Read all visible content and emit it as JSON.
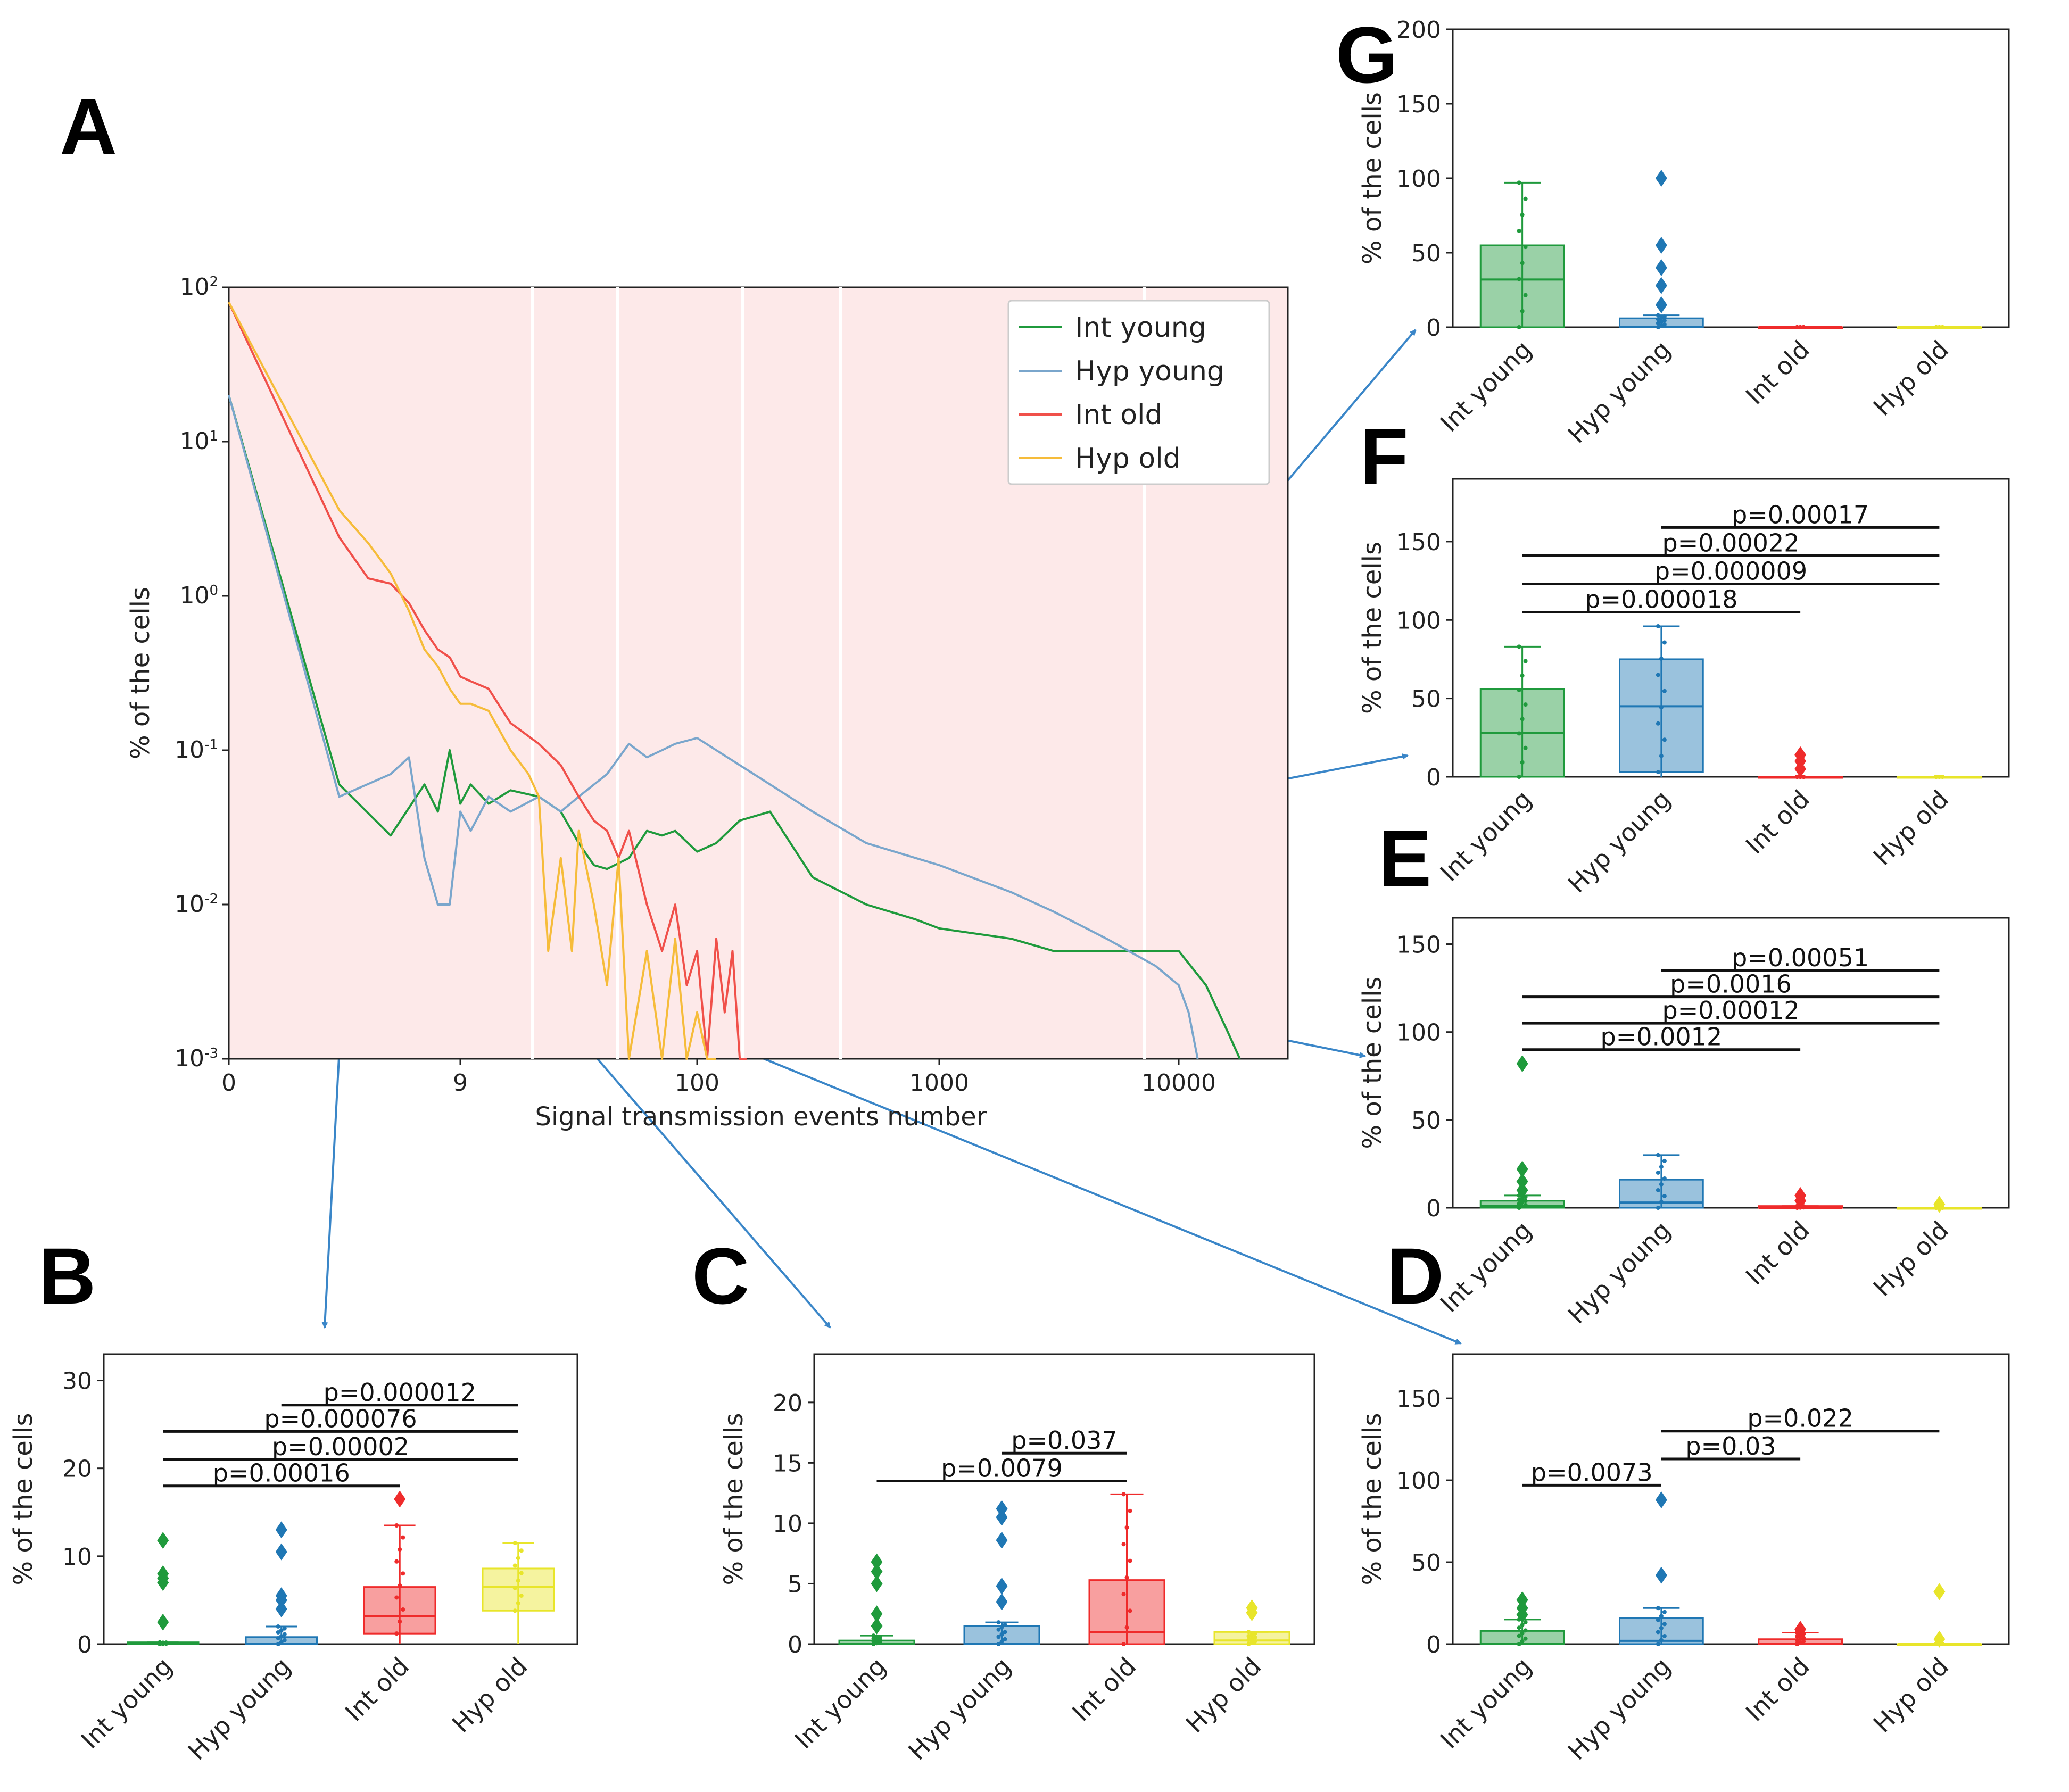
{
  "colors": {
    "int_young": "#1f9a3c",
    "hyp_young": "#1f77b4",
    "int_old": "#ef2b2b",
    "hyp_old": "#e8e52a",
    "line_hyp_young": "#7aa6cc",
    "line_int_old": "#f0504a",
    "line_hyp_old": "#f6bc3a",
    "bg_main": "#fde9e9",
    "arrow": "#3a86c8"
  },
  "chart_data": [
    {
      "id": "A",
      "panel_letter": "A",
      "type": "line",
      "xlabel": "Signal transmission events number",
      "ylabel": "% of the cells",
      "yscale": "log",
      "ylim": [
        0.001,
        100
      ],
      "y_ticks": [
        {
          "value": 100,
          "base": "10",
          "exp": "2"
        },
        {
          "value": 10,
          "base": "10",
          "exp": "1"
        },
        {
          "value": 1,
          "base": "10",
          "exp": "0"
        },
        {
          "value": 0.1,
          "base": "10",
          "exp": "-1"
        },
        {
          "value": 0.01,
          "base": "10",
          "exp": "-2"
        },
        {
          "value": 0.001,
          "base": "10",
          "exp": "-3"
        }
      ],
      "x_ticks": [
        "0",
        "9",
        "100",
        "1000",
        "10000"
      ],
      "x_tick_values": [
        0,
        9,
        100,
        1000,
        10000
      ],
      "legend": [
        "Int young",
        "Hyp young",
        "Int old",
        "Hyp old"
      ],
      "series": [
        {
          "name": "Int young",
          "color_key": "int_young",
          "x": [
            0,
            2,
            4,
            6,
            7,
            8,
            9,
            10,
            12,
            15,
            20,
            25,
            30,
            35,
            40,
            50,
            60,
            70,
            80,
            100,
            120,
            150,
            200,
            300,
            500,
            800,
            1000,
            2000,
            3000,
            5000,
            8000,
            10000,
            13000,
            16000,
            18000
          ],
          "y": [
            20,
            0.06,
            0.028,
            0.06,
            0.04,
            0.1,
            0.045,
            0.06,
            0.045,
            0.055,
            0.05,
            0.04,
            0.025,
            0.018,
            0.017,
            0.02,
            0.03,
            0.028,
            0.03,
            0.022,
            0.025,
            0.035,
            0.04,
            0.015,
            0.01,
            0.008,
            0.007,
            0.006,
            0.005,
            0.005,
            0.005,
            0.005,
            0.003,
            0.0015,
            0.001
          ]
        },
        {
          "name": "Hyp young",
          "color_key": "line_hyp_young",
          "x": [
            0,
            2,
            4,
            5,
            6,
            7,
            8,
            9,
            10,
            12,
            15,
            20,
            25,
            30,
            40,
            50,
            60,
            70,
            80,
            100,
            120,
            150,
            200,
            300,
            500,
            800,
            1000,
            2000,
            3000,
            5000,
            8000,
            10000,
            11000,
            12000
          ],
          "y": [
            20,
            0.05,
            0.07,
            0.09,
            0.02,
            0.01,
            0.01,
            0.04,
            0.03,
            0.05,
            0.04,
            0.05,
            0.04,
            0.05,
            0.07,
            0.11,
            0.09,
            0.1,
            0.11,
            0.12,
            0.1,
            0.08,
            0.06,
            0.04,
            0.025,
            0.02,
            0.018,
            0.012,
            0.009,
            0.006,
            0.004,
            0.003,
            0.002,
            0.001
          ]
        },
        {
          "name": "Int old",
          "color_key": "line_int_old",
          "x": [
            0,
            2,
            3,
            4,
            5,
            6,
            7,
            8,
            9,
            10,
            12,
            15,
            20,
            25,
            30,
            35,
            40,
            45,
            50,
            60,
            70,
            80,
            90,
            100,
            110,
            120,
            130,
            140,
            150,
            160
          ],
          "y": [
            80,
            2.4,
            1.3,
            1.2,
            0.9,
            0.6,
            0.45,
            0.4,
            0.3,
            0.28,
            0.25,
            0.15,
            0.11,
            0.08,
            0.05,
            0.035,
            0.03,
            0.02,
            0.03,
            0.01,
            0.005,
            0.01,
            0.003,
            0.005,
            0.001,
            0.006,
            0.002,
            0.005,
            0.001,
            0.001
          ]
        },
        {
          "name": "Hyp old",
          "color_key": "line_hyp_old",
          "x": [
            0,
            2,
            3,
            4,
            5,
            6,
            7,
            8,
            9,
            10,
            12,
            15,
            18,
            20,
            22,
            25,
            28,
            30,
            35,
            40,
            45,
            50,
            60,
            70,
            80,
            90,
            100,
            110,
            120
          ],
          "y": [
            80,
            3.6,
            2.2,
            1.4,
            0.8,
            0.45,
            0.35,
            0.25,
            0.2,
            0.2,
            0.18,
            0.1,
            0.07,
            0.05,
            0.005,
            0.02,
            0.005,
            0.03,
            0.01,
            0.003,
            0.02,
            0.001,
            0.005,
            0.001,
            0.006,
            0.001,
            0.002,
            0.001,
            0.001
          ]
        }
      ]
    },
    {
      "id": "B",
      "panel_letter": "B",
      "type": "box",
      "ylabel": "% of the cells",
      "ylim": [
        0,
        33
      ],
      "y_ticks": [
        0,
        10,
        20,
        30
      ],
      "categories": [
        "Int young",
        "Hyp young",
        "Int old",
        "Hyp old"
      ],
      "boxes": [
        {
          "q1": 0,
          "median": 0,
          "q3": 0.2,
          "whislo": 0,
          "whishi": 0.2,
          "fliers": [
            2.5,
            7.0,
            7.5,
            8.0,
            11.8
          ]
        },
        {
          "q1": 0,
          "median": 0,
          "q3": 0.8,
          "whislo": 0,
          "whishi": 2.0,
          "fliers": [
            4.0,
            5.0,
            5.5,
            10.5,
            13.0
          ]
        },
        {
          "q1": 1.2,
          "median": 3.2,
          "q3": 6.5,
          "whislo": 0,
          "whishi": 13.5,
          "fliers": [
            16.5
          ]
        },
        {
          "q1": 3.8,
          "median": 6.5,
          "q3": 8.6,
          "whislo": 0,
          "whishi": 11.5,
          "fliers": []
        }
      ],
      "comparisons": [
        {
          "label": "p=0.00016",
          "from": 0,
          "to": 2,
          "y": 18.0
        },
        {
          "label": "p=0.00002",
          "from": 0,
          "to": 3,
          "y": 21.0
        },
        {
          "label": "p=0.000076",
          "from": 0,
          "to": 3,
          "y": 24.2
        },
        {
          "label": "p=0.000012",
          "from": 1,
          "to": 3,
          "y": 27.2
        }
      ]
    },
    {
      "id": "C",
      "panel_letter": "C",
      "type": "box",
      "ylabel": "% of the cells",
      "ylim": [
        0,
        24
      ],
      "y_ticks": [
        0,
        5,
        10,
        15,
        20
      ],
      "categories": [
        "Int young",
        "Hyp young",
        "Int old",
        "Hyp old"
      ],
      "boxes": [
        {
          "q1": 0,
          "median": 0,
          "q3": 0.3,
          "whislo": 0,
          "whishi": 0.7,
          "fliers": [
            1.5,
            2.5,
            5.0,
            6.0,
            6.8
          ]
        },
        {
          "q1": 0,
          "median": 0,
          "q3": 1.5,
          "whislo": 0,
          "whishi": 1.8,
          "fliers": [
            3.5,
            4.8,
            8.6,
            10.5,
            11.2
          ]
        },
        {
          "q1": 0,
          "median": 1.0,
          "q3": 5.3,
          "whislo": 0,
          "whishi": 12.4,
          "fliers": []
        },
        {
          "q1": 0,
          "median": 0.3,
          "q3": 1.0,
          "whislo": 0,
          "whishi": 1.0,
          "fliers": [
            2.6,
            3.0
          ]
        }
      ],
      "comparisons": [
        {
          "label": "p=0.0079",
          "from": 0,
          "to": 2,
          "y": 13.5
        },
        {
          "label": "p=0.037",
          "from": 1,
          "to": 2,
          "y": 15.8
        }
      ]
    },
    {
      "id": "D",
      "panel_letter": "D",
      "type": "box",
      "ylabel": "% of the cells",
      "ylim": [
        0,
        177
      ],
      "y_ticks": [
        0,
        50,
        100,
        150
      ],
      "categories": [
        "Int young",
        "Hyp young",
        "Int old",
        "Hyp old"
      ],
      "boxes": [
        {
          "q1": 0,
          "median": 0,
          "q3": 8,
          "whislo": 0,
          "whishi": 15,
          "fliers": [
            18,
            22,
            27
          ]
        },
        {
          "q1": 0,
          "median": 2,
          "q3": 16,
          "whislo": 0,
          "whishi": 22,
          "fliers": [
            42,
            88
          ]
        },
        {
          "q1": 0,
          "median": 0,
          "q3": 3,
          "whislo": 0,
          "whishi": 7,
          "fliers": [
            9
          ]
        },
        {
          "q1": 0,
          "median": 0,
          "q3": 0,
          "whislo": 0,
          "whishi": 0,
          "fliers": [
            3,
            32
          ]
        }
      ],
      "comparisons": [
        {
          "label": "p=0.0073",
          "from": 0,
          "to": 1,
          "y": 97
        },
        {
          "label": "p=0.03",
          "from": 1,
          "to": 2,
          "y": 113
        },
        {
          "label": "p=0.022",
          "from": 1,
          "to": 3,
          "y": 130
        }
      ]
    },
    {
      "id": "E",
      "panel_letter": "E",
      "type": "box",
      "ylabel": "% of the cells",
      "ylim": [
        0,
        165
      ],
      "y_ticks": [
        0,
        50,
        100,
        150
      ],
      "categories": [
        "Int young",
        "Hyp young",
        "Int old",
        "Hyp old"
      ],
      "boxes": [
        {
          "q1": 0,
          "median": 1,
          "q3": 4,
          "whislo": 0,
          "whishi": 7,
          "fliers": [
            10,
            15,
            22,
            82
          ]
        },
        {
          "q1": 0,
          "median": 3,
          "q3": 16,
          "whislo": 0,
          "whishi": 30,
          "fliers": []
        },
        {
          "q1": 0,
          "median": 0,
          "q3": 1,
          "whislo": 0,
          "whishi": 1,
          "fliers": [
            4,
            7
          ]
        },
        {
          "q1": 0,
          "median": 0,
          "q3": 0,
          "whislo": 0,
          "whishi": 0,
          "fliers": [
            2
          ]
        }
      ],
      "comparisons": [
        {
          "label": "p=0.0012",
          "from": 0,
          "to": 2,
          "y": 90
        },
        {
          "label": "p=0.00012",
          "from": 0,
          "to": 3,
          "y": 105
        },
        {
          "label": "p=0.0016",
          "from": 0,
          "to": 3,
          "y": 120
        },
        {
          "label": "p=0.00051",
          "from": 1,
          "to": 3,
          "y": 135
        }
      ]
    },
    {
      "id": "F",
      "panel_letter": "F",
      "type": "box",
      "ylabel": "% of the cells",
      "ylim": [
        0,
        190
      ],
      "y_ticks": [
        0,
        50,
        100,
        150
      ],
      "categories": [
        "Int young",
        "Hyp young",
        "Int old",
        "Hyp old"
      ],
      "boxes": [
        {
          "q1": 0,
          "median": 28,
          "q3": 56,
          "whislo": 0,
          "whishi": 83,
          "fliers": []
        },
        {
          "q1": 3,
          "median": 45,
          "q3": 75,
          "whislo": 0,
          "whishi": 96,
          "fliers": []
        },
        {
          "q1": 0,
          "median": 0,
          "q3": 0,
          "whislo": 0,
          "whishi": 0,
          "fliers": [
            5,
            10,
            14
          ]
        },
        {
          "q1": 0,
          "median": 0,
          "q3": 0,
          "whislo": 0,
          "whishi": 0,
          "fliers": []
        }
      ],
      "comparisons": [
        {
          "label": "p=0.000018",
          "from": 0,
          "to": 2,
          "y": 105
        },
        {
          "label": "p=0.000009",
          "from": 0,
          "to": 3,
          "y": 123
        },
        {
          "label": "p=0.00022",
          "from": 0,
          "to": 3,
          "y": 141
        },
        {
          "label": "p=0.00017",
          "from": 1,
          "to": 3,
          "y": 159
        }
      ]
    },
    {
      "id": "G",
      "panel_letter": "G",
      "type": "box",
      "ylabel": "% of the cells",
      "ylim": [
        0,
        200
      ],
      "y_ticks": [
        0,
        50,
        100,
        150,
        200
      ],
      "categories": [
        "Int young",
        "Hyp young",
        "Int old",
        "Hyp old"
      ],
      "boxes": [
        {
          "q1": 0,
          "median": 32,
          "q3": 55,
          "whislo": 0,
          "whishi": 97,
          "fliers": []
        },
        {
          "q1": 0,
          "median": 0,
          "q3": 6,
          "whislo": 0,
          "whishi": 8,
          "fliers": [
            15,
            28,
            40,
            55,
            100
          ]
        },
        {
          "q1": 0,
          "median": 0,
          "q3": 0,
          "whislo": 0,
          "whishi": 0,
          "fliers": []
        },
        {
          "q1": 0,
          "median": 0,
          "q3": 0,
          "whislo": 0,
          "whishi": 0,
          "fliers": []
        }
      ],
      "comparisons": []
    }
  ]
}
